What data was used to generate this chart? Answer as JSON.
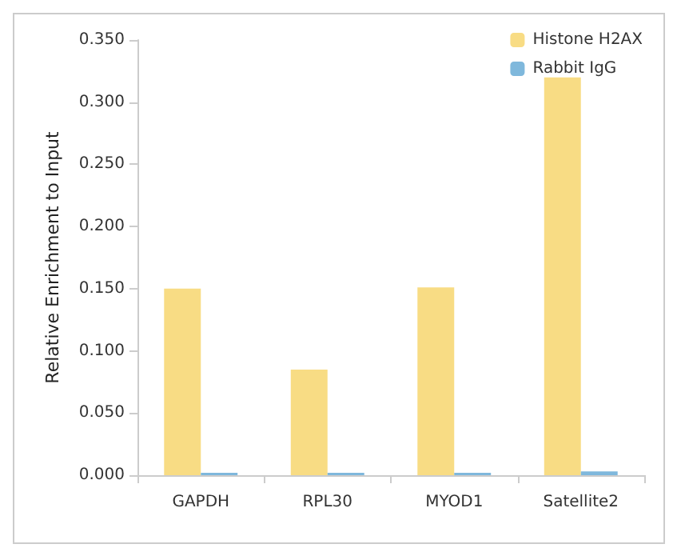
{
  "chart_data": {
    "type": "bar",
    "ylabel": "Relative Enrichment to Input",
    "categories": [
      "GAPDH",
      "RPL30",
      "MYOD1",
      "Satellite2"
    ],
    "series": [
      {
        "name": "Histone H2AX",
        "color": "#f8dc84",
        "values": [
          0.15,
          0.085,
          0.151,
          0.32
        ]
      },
      {
        "name": "Rabbit IgG",
        "color": "#7fb8dc",
        "values": [
          0.002,
          0.002,
          0.002,
          0.003
        ]
      }
    ],
    "ylim": [
      0,
      0.35
    ],
    "yticks": [
      {
        "value": 0,
        "label": "0.000"
      },
      {
        "value": 0.05,
        "label": "0.050"
      },
      {
        "value": 0.1,
        "label": "0.100"
      },
      {
        "value": 0.15,
        "label": "0.150"
      },
      {
        "value": 0.2,
        "label": "0.200"
      },
      {
        "value": 0.25,
        "label": "0.250"
      },
      {
        "value": 0.3,
        "label": "0.300"
      },
      {
        "value": 0.35,
        "label": "0.350"
      }
    ],
    "grid": false,
    "legend": "top right"
  }
}
